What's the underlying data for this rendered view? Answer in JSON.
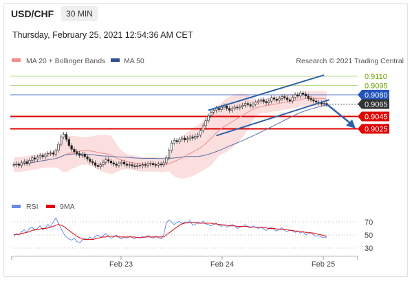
{
  "header": {
    "symbol": "USD/CHF",
    "timeframe": "30 MIN"
  },
  "datetime": "Thursday, February 25, 2021 12:54:36 AM CET",
  "legend": {
    "ma20_bb": "MA 20 + Bollinger Bands",
    "ma50": "MA 50"
  },
  "copyright": "Research © 2021 Trading Central",
  "rsi_legend": {
    "rsi": "RSI",
    "ma9": "9MA"
  },
  "colors": {
    "green": "#69a300",
    "blue": "#2255bb",
    "red": "#e00000",
    "dark": "#333333",
    "band": "#f9d3d3",
    "arrow": "#2e62a8"
  },
  "chart_data": [
    {
      "type": "candlestick",
      "title": "USD/CHF 30 MIN",
      "x_ticks": [
        "Feb 23",
        "Feb 24",
        "Feb 25"
      ],
      "levels": [
        {
          "value": 0.911,
          "label": "0.9110",
          "color": "green"
        },
        {
          "value": 0.9095,
          "label": "0.9095",
          "color": "green"
        },
        {
          "value": 0.908,
          "label": "0.9080",
          "color": "blue"
        },
        {
          "value": 0.9065,
          "label": "0.9065",
          "color": "dark"
        },
        {
          "value": 0.9045,
          "label": "0.9045",
          "color": "red"
        },
        {
          "value": 0.9025,
          "label": "0.9025",
          "color": "red"
        }
      ],
      "close_series": [
        0.8967,
        0.8968,
        0.8966,
        0.897,
        0.8972,
        0.8969,
        0.8974,
        0.8978,
        0.8976,
        0.8979,
        0.8982,
        0.898,
        0.8983,
        0.8985,
        0.8986,
        0.8984,
        0.899,
        0.9,
        0.9012,
        0.9016,
        0.9008,
        0.8998,
        0.8992,
        0.8988,
        0.8985,
        0.8982,
        0.8984,
        0.898,
        0.8976,
        0.8972,
        0.897,
        0.8966,
        0.8964,
        0.8967,
        0.8971,
        0.8975,
        0.8973,
        0.897,
        0.8968,
        0.8966,
        0.8969,
        0.8971,
        0.8968,
        0.8966,
        0.8967,
        0.8965,
        0.8964,
        0.8966,
        0.8965,
        0.8967,
        0.8966,
        0.8968,
        0.8969,
        0.8967,
        0.8966,
        0.8968,
        0.8967,
        0.897,
        0.8978,
        0.899,
        0.9002,
        0.9006,
        0.9004,
        0.9008,
        0.901,
        0.9007,
        0.9009,
        0.9012,
        0.901,
        0.9013,
        0.9015,
        0.9022,
        0.903,
        0.9038,
        0.9046,
        0.9052,
        0.9055,
        0.9058,
        0.9056,
        0.906,
        0.9062,
        0.9058,
        0.9055,
        0.9058,
        0.906,
        0.9059,
        0.9061,
        0.9063,
        0.9066,
        0.9064,
        0.9062,
        0.9065,
        0.9068,
        0.907,
        0.9072,
        0.9069,
        0.9067,
        0.907,
        0.9075,
        0.9073,
        0.9071,
        0.9074,
        0.9077,
        0.9075,
        0.9072,
        0.907,
        0.9076,
        0.908,
        0.9078,
        0.9083,
        0.9081,
        0.9078,
        0.9074,
        0.9072,
        0.907,
        0.9068,
        0.9067,
        0.9065,
        0.9066,
        0.9064
      ],
      "rsi": {
        "levels": [
          70,
          50,
          30
        ],
        "rsi_series": [
          48,
          52,
          50,
          55,
          58,
          54,
          60,
          62,
          57,
          60,
          64,
          58,
          61,
          66,
          62,
          70,
          76,
          68,
          60,
          52,
          47,
          44,
          42,
          45,
          40,
          38,
          42,
          45,
          43,
          47,
          44,
          48,
          50,
          46,
          49,
          52,
          48,
          45,
          47,
          50,
          46,
          44,
          47,
          45,
          48,
          46,
          44,
          47,
          45,
          48,
          46,
          49,
          47,
          45,
          48,
          46,
          44,
          50,
          68,
          73,
          70,
          66,
          69,
          71,
          67,
          70,
          68,
          72,
          65,
          66,
          70,
          68,
          71,
          67,
          66,
          64,
          66,
          68,
          65,
          63,
          66,
          62,
          64,
          66,
          64,
          60,
          62,
          63,
          66,
          62,
          61,
          64,
          62,
          60,
          62,
          59,
          57,
          60,
          62,
          58,
          56,
          59,
          61,
          57,
          55,
          58,
          56,
          54,
          56,
          53,
          55,
          50,
          52,
          54,
          50,
          48,
          49,
          47,
          46,
          47
        ],
        "ma9_series": [
          50,
          51,
          51,
          52,
          53,
          54,
          55,
          57,
          58,
          58,
          59,
          60,
          60,
          61,
          62,
          63,
          65,
          66,
          65,
          63,
          60,
          57,
          54,
          51,
          48,
          46,
          44,
          43,
          43,
          43,
          43,
          44,
          45,
          46,
          47,
          47,
          48,
          48,
          48,
          48,
          47,
          47,
          47,
          47,
          47,
          47,
          47,
          46,
          46,
          46,
          47,
          47,
          47,
          47,
          47,
          47,
          47,
          47,
          50,
          53,
          56,
          59,
          62,
          65,
          67,
          68,
          69,
          69,
          69,
          69,
          68,
          68,
          68,
          68,
          68,
          68,
          67,
          67,
          66,
          66,
          65,
          65,
          64,
          64,
          64,
          63,
          63,
          63,
          63,
          63,
          62,
          62,
          62,
          62,
          62,
          61,
          61,
          60,
          60,
          60,
          59,
          59,
          58,
          58,
          58,
          57,
          57,
          56,
          56,
          55,
          55,
          54,
          54,
          53,
          53,
          52,
          51,
          50,
          49,
          48
        ]
      }
    }
  ]
}
